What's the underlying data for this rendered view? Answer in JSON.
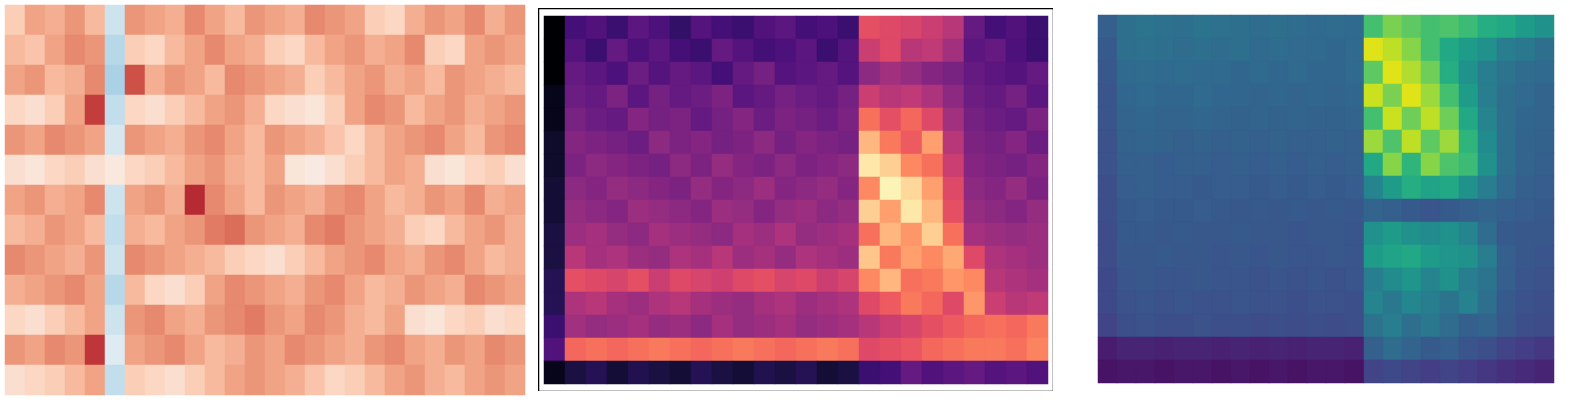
{
  "chart_data": [
    {
      "type": "heatmap",
      "tick_labels": false,
      "color": "RdBu",
      "zlim": [
        0,
        1
      ],
      "cells": [
        [
          0.62,
          0.7,
          0.68,
          0.72,
          0.66,
          0.4,
          0.72,
          0.7,
          0.68,
          0.74,
          0.7,
          0.66,
          0.72,
          0.7,
          0.68,
          0.74,
          0.72,
          0.7,
          0.62,
          0.6,
          0.68,
          0.72,
          0.7,
          0.74,
          0.68,
          0.72
        ],
        [
          0.66,
          0.64,
          0.7,
          0.74,
          0.72,
          0.36,
          0.62,
          0.6,
          0.66,
          0.7,
          0.74,
          0.7,
          0.68,
          0.62,
          0.6,
          0.66,
          0.7,
          0.72,
          0.68,
          0.7,
          0.74,
          0.62,
          0.6,
          0.7,
          0.72,
          0.7
        ],
        [
          0.7,
          0.72,
          0.66,
          0.68,
          0.74,
          0.34,
          0.82,
          0.68,
          0.72,
          0.7,
          0.66,
          0.74,
          0.72,
          0.7,
          0.68,
          0.62,
          0.66,
          0.7,
          0.72,
          0.68,
          0.7,
          0.66,
          0.72,
          0.7,
          0.68,
          0.66
        ],
        [
          0.6,
          0.58,
          0.62,
          0.7,
          0.85,
          0.38,
          0.6,
          0.58,
          0.62,
          0.66,
          0.7,
          0.72,
          0.68,
          0.6,
          0.58,
          0.56,
          0.62,
          0.7,
          0.74,
          0.72,
          0.66,
          0.7,
          0.72,
          0.68,
          0.7,
          0.72
        ],
        [
          0.72,
          0.7,
          0.74,
          0.72,
          0.7,
          0.42,
          0.72,
          0.7,
          0.68,
          0.72,
          0.74,
          0.7,
          0.66,
          0.72,
          0.7,
          0.68,
          0.64,
          0.6,
          0.66,
          0.7,
          0.72,
          0.74,
          0.7,
          0.66,
          0.72,
          0.74
        ],
        [
          0.58,
          0.56,
          0.6,
          0.62,
          0.58,
          0.55,
          0.6,
          0.62,
          0.66,
          0.7,
          0.72,
          0.68,
          0.66,
          0.7,
          0.56,
          0.54,
          0.58,
          0.62,
          0.66,
          0.7,
          0.68,
          0.58,
          0.56,
          0.6,
          0.62,
          0.58
        ],
        [
          0.7,
          0.72,
          0.68,
          0.7,
          0.74,
          0.4,
          0.7,
          0.72,
          0.68,
          0.88,
          0.74,
          0.7,
          0.66,
          0.72,
          0.7,
          0.68,
          0.72,
          0.74,
          0.7,
          0.66,
          0.68,
          0.72,
          0.7,
          0.74,
          0.68,
          0.7
        ],
        [
          0.66,
          0.68,
          0.72,
          0.7,
          0.66,
          0.38,
          0.68,
          0.66,
          0.7,
          0.72,
          0.76,
          0.78,
          0.72,
          0.7,
          0.68,
          0.74,
          0.76,
          0.72,
          0.7,
          0.68,
          0.62,
          0.6,
          0.66,
          0.7,
          0.72,
          0.68
        ],
        [
          0.74,
          0.72,
          0.7,
          0.68,
          0.72,
          0.4,
          0.74,
          0.72,
          0.7,
          0.68,
          0.66,
          0.62,
          0.6,
          0.58,
          0.62,
          0.66,
          0.7,
          0.72,
          0.74,
          0.7,
          0.68,
          0.72,
          0.74,
          0.7,
          0.66,
          0.68
        ],
        [
          0.68,
          0.7,
          0.72,
          0.74,
          0.7,
          0.36,
          0.66,
          0.6,
          0.58,
          0.62,
          0.7,
          0.74,
          0.72,
          0.7,
          0.68,
          0.72,
          0.74,
          0.7,
          0.66,
          0.68,
          0.72,
          0.7,
          0.68,
          0.74,
          0.72,
          0.7
        ],
        [
          0.6,
          0.58,
          0.62,
          0.66,
          0.7,
          0.4,
          0.72,
          0.74,
          0.7,
          0.68,
          0.72,
          0.74,
          0.76,
          0.72,
          0.7,
          0.74,
          0.72,
          0.68,
          0.66,
          0.7,
          0.58,
          0.56,
          0.6,
          0.62,
          0.58,
          0.6
        ],
        [
          0.72,
          0.7,
          0.74,
          0.72,
          0.86,
          0.44,
          0.7,
          0.72,
          0.74,
          0.7,
          0.66,
          0.68,
          0.72,
          0.7,
          0.74,
          0.72,
          0.7,
          0.68,
          0.72,
          0.74,
          0.7,
          0.68,
          0.72,
          0.7,
          0.74,
          0.72
        ],
        [
          0.58,
          0.6,
          0.62,
          0.66,
          0.7,
          0.38,
          0.62,
          0.6,
          0.58,
          0.62,
          0.66,
          0.7,
          0.72,
          0.7,
          0.68,
          0.64,
          0.6,
          0.62,
          0.66,
          0.7,
          0.72,
          0.68,
          0.66,
          0.7,
          0.72,
          0.7
        ]
      ]
    },
    {
      "type": "heatmap",
      "tick_labels": false,
      "color": "magma",
      "zlim": [
        0,
        1
      ],
      "cells": [
        [
          0.0,
          0.22,
          0.25,
          0.2,
          0.28,
          0.24,
          0.18,
          0.26,
          0.22,
          0.2,
          0.25,
          0.28,
          0.22,
          0.24,
          0.2,
          0.62,
          0.6,
          0.58,
          0.55,
          0.5,
          0.3,
          0.22,
          0.25,
          0.2
        ],
        [
          0.0,
          0.26,
          0.2,
          0.3,
          0.24,
          0.28,
          0.22,
          0.2,
          0.3,
          0.26,
          0.22,
          0.24,
          0.28,
          0.2,
          0.26,
          0.55,
          0.6,
          0.5,
          0.52,
          0.45,
          0.28,
          0.3,
          0.24,
          0.2
        ],
        [
          0.0,
          0.3,
          0.28,
          0.24,
          0.32,
          0.26,
          0.3,
          0.28,
          0.22,
          0.3,
          0.34,
          0.26,
          0.28,
          0.3,
          0.26,
          0.4,
          0.45,
          0.42,
          0.38,
          0.35,
          0.3,
          0.28,
          0.26,
          0.3
        ],
        [
          0.05,
          0.32,
          0.3,
          0.36,
          0.28,
          0.34,
          0.3,
          0.32,
          0.36,
          0.28,
          0.3,
          0.34,
          0.32,
          0.3,
          0.34,
          0.55,
          0.5,
          0.52,
          0.48,
          0.4,
          0.32,
          0.3,
          0.34,
          0.28
        ],
        [
          0.05,
          0.35,
          0.32,
          0.3,
          0.38,
          0.34,
          0.36,
          0.3,
          0.34,
          0.38,
          0.32,
          0.36,
          0.34,
          0.32,
          0.36,
          0.7,
          0.62,
          0.68,
          0.6,
          0.45,
          0.34,
          0.32,
          0.3,
          0.36
        ],
        [
          0.08,
          0.38,
          0.36,
          0.34,
          0.32,
          0.4,
          0.36,
          0.38,
          0.34,
          0.36,
          0.4,
          0.34,
          0.38,
          0.36,
          0.34,
          0.85,
          0.72,
          0.65,
          0.8,
          0.5,
          0.36,
          0.34,
          0.38,
          0.32
        ],
        [
          0.08,
          0.36,
          0.4,
          0.38,
          0.36,
          0.34,
          0.4,
          0.36,
          0.42,
          0.38,
          0.36,
          0.4,
          0.36,
          0.38,
          0.4,
          0.95,
          0.9,
          0.75,
          0.7,
          0.55,
          0.38,
          0.36,
          0.34,
          0.38
        ],
        [
          0.1,
          0.4,
          0.38,
          0.42,
          0.4,
          0.38,
          0.36,
          0.42,
          0.38,
          0.4,
          0.44,
          0.38,
          0.4,
          0.42,
          0.38,
          0.75,
          0.98,
          0.92,
          0.8,
          0.6,
          0.4,
          0.38,
          0.42,
          0.36
        ],
        [
          0.1,
          0.42,
          0.4,
          0.38,
          0.44,
          0.42,
          0.4,
          0.38,
          0.44,
          0.42,
          0.38,
          0.42,
          0.44,
          0.4,
          0.42,
          0.9,
          0.8,
          0.95,
          0.85,
          0.62,
          0.42,
          0.4,
          0.38,
          0.42
        ],
        [
          0.12,
          0.44,
          0.46,
          0.42,
          0.4,
          0.46,
          0.44,
          0.42,
          0.4,
          0.46,
          0.44,
          0.48,
          0.42,
          0.44,
          0.46,
          0.7,
          0.85,
          0.78,
          0.9,
          0.7,
          0.46,
          0.44,
          0.42,
          0.44
        ],
        [
          0.12,
          0.5,
          0.46,
          0.48,
          0.44,
          0.42,
          0.48,
          0.46,
          0.5,
          0.44,
          0.46,
          0.42,
          0.48,
          0.46,
          0.44,
          0.88,
          0.72,
          0.8,
          0.75,
          0.82,
          0.6,
          0.48,
          0.46,
          0.44
        ],
        [
          0.15,
          0.62,
          0.6,
          0.58,
          0.62,
          0.55,
          0.6,
          0.58,
          0.56,
          0.6,
          0.62,
          0.58,
          0.6,
          0.55,
          0.58,
          0.75,
          0.85,
          0.7,
          0.72,
          0.78,
          0.75,
          0.5,
          0.48,
          0.46
        ],
        [
          0.15,
          0.48,
          0.5,
          0.46,
          0.44,
          0.48,
          0.5,
          0.46,
          0.44,
          0.42,
          0.46,
          0.48,
          0.44,
          0.46,
          0.48,
          0.6,
          0.65,
          0.72,
          0.68,
          0.6,
          0.78,
          0.55,
          0.5,
          0.52
        ],
        [
          0.2,
          0.45,
          0.42,
          0.44,
          0.46,
          0.42,
          0.44,
          0.4,
          0.46,
          0.42,
          0.44,
          0.46,
          0.42,
          0.44,
          0.46,
          0.5,
          0.55,
          0.58,
          0.62,
          0.65,
          0.68,
          0.7,
          0.68,
          0.72
        ],
        [
          0.25,
          0.68,
          0.7,
          0.68,
          0.7,
          0.72,
          0.7,
          0.68,
          0.7,
          0.72,
          0.7,
          0.68,
          0.7,
          0.72,
          0.7,
          0.6,
          0.62,
          0.64,
          0.68,
          0.7,
          0.72,
          0.72,
          0.7,
          0.74
        ],
        [
          0.05,
          0.12,
          0.15,
          0.1,
          0.14,
          0.12,
          0.1,
          0.15,
          0.12,
          0.1,
          0.14,
          0.12,
          0.15,
          0.1,
          0.12,
          0.2,
          0.22,
          0.3,
          0.25,
          0.28,
          0.3,
          0.26,
          0.28,
          0.25
        ]
      ]
    },
    {
      "type": "heatmap",
      "tick_labels": false,
      "color": "viridis",
      "zlim": [
        0,
        1
      ],
      "cells": [
        [
          0.3,
          0.36,
          0.38,
          0.37,
          0.36,
          0.38,
          0.37,
          0.36,
          0.35,
          0.36,
          0.35,
          0.34,
          0.35,
          0.34,
          0.7,
          0.8,
          0.75,
          0.7,
          0.72,
          0.68,
          0.62,
          0.6,
          0.55,
          0.5
        ],
        [
          0.28,
          0.36,
          0.37,
          0.36,
          0.35,
          0.36,
          0.35,
          0.36,
          0.34,
          0.35,
          0.34,
          0.34,
          0.33,
          0.34,
          0.95,
          0.9,
          0.82,
          0.7,
          0.6,
          0.55,
          0.5,
          0.42,
          0.4,
          0.36
        ],
        [
          0.27,
          0.34,
          0.35,
          0.34,
          0.35,
          0.34,
          0.34,
          0.33,
          0.34,
          0.33,
          0.34,
          0.33,
          0.33,
          0.34,
          0.75,
          0.95,
          0.88,
          0.78,
          0.62,
          0.5,
          0.42,
          0.38,
          0.35,
          0.34
        ],
        [
          0.26,
          0.33,
          0.34,
          0.33,
          0.33,
          0.34,
          0.33,
          0.33,
          0.32,
          0.33,
          0.32,
          0.33,
          0.32,
          0.33,
          0.92,
          0.8,
          0.95,
          0.85,
          0.7,
          0.55,
          0.42,
          0.36,
          0.34,
          0.32
        ],
        [
          0.26,
          0.32,
          0.33,
          0.32,
          0.32,
          0.33,
          0.32,
          0.31,
          0.32,
          0.31,
          0.32,
          0.31,
          0.31,
          0.32,
          0.7,
          0.92,
          0.78,
          0.9,
          0.78,
          0.6,
          0.45,
          0.36,
          0.33,
          0.32
        ],
        [
          0.25,
          0.31,
          0.32,
          0.31,
          0.3,
          0.31,
          0.3,
          0.31,
          0.3,
          0.31,
          0.3,
          0.3,
          0.31,
          0.3,
          0.85,
          0.72,
          0.9,
          0.75,
          0.85,
          0.65,
          0.48,
          0.36,
          0.32,
          0.31
        ],
        [
          0.25,
          0.3,
          0.3,
          0.29,
          0.3,
          0.3,
          0.29,
          0.3,
          0.29,
          0.3,
          0.29,
          0.3,
          0.29,
          0.3,
          0.6,
          0.82,
          0.65,
          0.82,
          0.72,
          0.68,
          0.5,
          0.36,
          0.32,
          0.3
        ],
        [
          0.24,
          0.29,
          0.3,
          0.29,
          0.29,
          0.28,
          0.29,
          0.29,
          0.28,
          0.29,
          0.28,
          0.29,
          0.28,
          0.29,
          0.45,
          0.55,
          0.62,
          0.58,
          0.6,
          0.5,
          0.42,
          0.34,
          0.3,
          0.29
        ],
        [
          0.24,
          0.28,
          0.29,
          0.28,
          0.28,
          0.29,
          0.28,
          0.27,
          0.28,
          0.27,
          0.28,
          0.27,
          0.28,
          0.27,
          0.32,
          0.3,
          0.28,
          0.26,
          0.28,
          0.3,
          0.32,
          0.3,
          0.29,
          0.28
        ],
        [
          0.23,
          0.28,
          0.28,
          0.27,
          0.28,
          0.27,
          0.27,
          0.28,
          0.27,
          0.27,
          0.26,
          0.27,
          0.27,
          0.26,
          0.5,
          0.55,
          0.5,
          0.48,
          0.5,
          0.45,
          0.35,
          0.28,
          0.27,
          0.27
        ],
        [
          0.23,
          0.27,
          0.27,
          0.28,
          0.27,
          0.27,
          0.26,
          0.27,
          0.26,
          0.27,
          0.26,
          0.26,
          0.27,
          0.26,
          0.55,
          0.58,
          0.6,
          0.55,
          0.52,
          0.5,
          0.42,
          0.3,
          0.27,
          0.26
        ],
        [
          0.22,
          0.26,
          0.27,
          0.26,
          0.26,
          0.27,
          0.26,
          0.26,
          0.25,
          0.26,
          0.25,
          0.26,
          0.25,
          0.26,
          0.42,
          0.48,
          0.52,
          0.45,
          0.5,
          0.42,
          0.38,
          0.3,
          0.26,
          0.25
        ],
        [
          0.22,
          0.25,
          0.26,
          0.25,
          0.26,
          0.25,
          0.25,
          0.26,
          0.25,
          0.25,
          0.24,
          0.25,
          0.25,
          0.24,
          0.45,
          0.4,
          0.46,
          0.42,
          0.38,
          0.44,
          0.36,
          0.28,
          0.25,
          0.24
        ],
        [
          0.2,
          0.24,
          0.25,
          0.24,
          0.24,
          0.25,
          0.24,
          0.24,
          0.23,
          0.24,
          0.23,
          0.24,
          0.23,
          0.24,
          0.38,
          0.42,
          0.36,
          0.4,
          0.35,
          0.3,
          0.32,
          0.27,
          0.24,
          0.23
        ],
        [
          0.08,
          0.1,
          0.1,
          0.09,
          0.1,
          0.1,
          0.09,
          0.1,
          0.09,
          0.1,
          0.09,
          0.1,
          0.1,
          0.09,
          0.3,
          0.35,
          0.32,
          0.28,
          0.3,
          0.26,
          0.24,
          0.2,
          0.18,
          0.16
        ],
        [
          0.05,
          0.06,
          0.06,
          0.05,
          0.06,
          0.06,
          0.05,
          0.06,
          0.05,
          0.06,
          0.05,
          0.06,
          0.06,
          0.05,
          0.2,
          0.22,
          0.2,
          0.18,
          0.2,
          0.18,
          0.16,
          0.14,
          0.12,
          0.1
        ]
      ]
    }
  ]
}
